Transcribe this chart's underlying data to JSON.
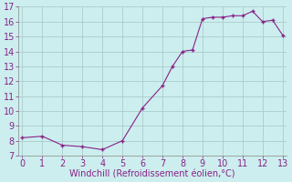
{
  "x": [
    0,
    1,
    2,
    3,
    4,
    5,
    6,
    7,
    7.5,
    8,
    8.5,
    9,
    9.5,
    10,
    10.5,
    11,
    11.5,
    12,
    12.5,
    13
  ],
  "y": [
    8.2,
    8.3,
    7.7,
    7.6,
    7.4,
    8.0,
    10.2,
    11.7,
    13.0,
    14.0,
    14.1,
    16.2,
    16.3,
    16.3,
    16.4,
    16.4,
    16.7,
    16.0,
    16.1,
    15.1
  ],
  "line_color": "#882288",
  "marker_color": "#882288",
  "bg_color": "#cceeee",
  "grid_color": "#aacccc",
  "xlabel": "Windchill (Refroidissement éolien,°C)",
  "xlabel_color": "#882288",
  "tick_color": "#882288",
  "ylim": [
    7,
    17
  ],
  "xlim": [
    -0.2,
    13.2
  ],
  "yticks": [
    7,
    8,
    9,
    10,
    11,
    12,
    13,
    14,
    15,
    16,
    17
  ],
  "xticks": [
    0,
    1,
    2,
    3,
    4,
    5,
    6,
    7,
    8,
    9,
    10,
    11,
    12,
    13
  ],
  "fontsize_label": 7,
  "fontsize_tick": 7
}
